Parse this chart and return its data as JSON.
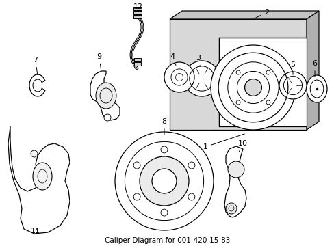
{
  "title": "Caliper Diagram for 001-420-15-83",
  "bg_color": "#ffffff",
  "line_color": "#000000",
  "panel_fill": "#d8d8d8",
  "figsize": [
    4.89,
    3.6
  ],
  "dpi": 100
}
